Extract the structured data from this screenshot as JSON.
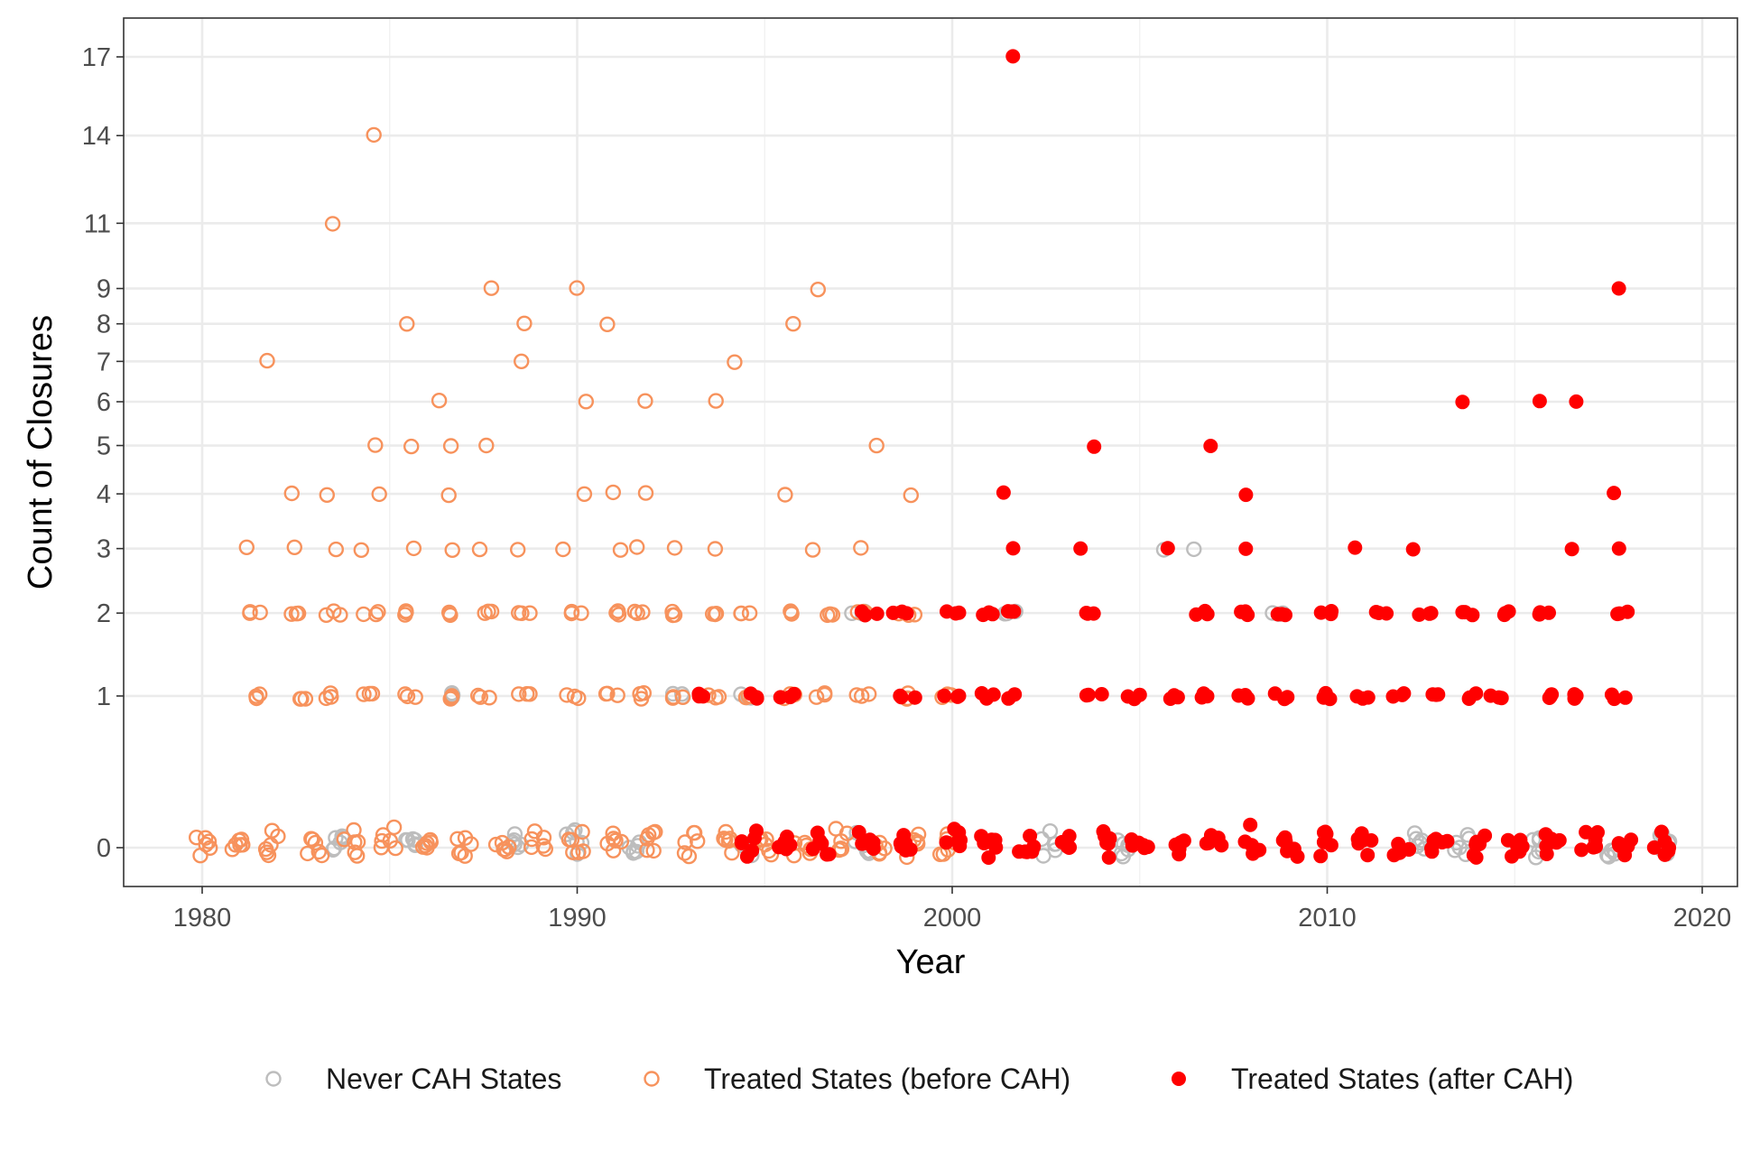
{
  "chart_data": {
    "type": "scatter",
    "title": "",
    "xlabel": "Year",
    "ylabel": "Count of Closures",
    "xlim": [
      1979,
      2020
    ],
    "x_ticks": [
      1980,
      1990,
      2000,
      2010,
      2020
    ],
    "y_ticks": [
      0,
      1,
      2,
      3,
      4,
      5,
      6,
      7,
      8,
      9,
      11,
      14,
      17
    ],
    "y_scale": "square-root",
    "grid": true,
    "legend_position": "bottom",
    "jitter": true,
    "series": [
      {
        "name": "Never CAH States",
        "marker": "open-circle",
        "color": "#bdbdbd",
        "points": [
          [
            1986.6,
            1
          ],
          [
            1992.7,
            1
          ],
          [
            1994.5,
            1
          ],
          [
            1997.5,
            2
          ],
          [
            2001.5,
            2
          ],
          [
            2005.5,
            3
          ],
          [
            2006.6,
            3
          ],
          [
            2008.6,
            2
          ],
          [
            2004.6,
            0
          ],
          [
            2012.5,
            0
          ],
          [
            2017.6,
            0
          ],
          [
            2018.9,
            0
          ],
          [
            1983.6,
            0
          ],
          [
            1985.6,
            0
          ],
          [
            1988.5,
            0
          ],
          [
            1989.9,
            0
          ],
          [
            1991.6,
            0
          ],
          [
            1994.6,
            0
          ],
          [
            1997.6,
            0
          ],
          [
            2002.6,
            0
          ],
          [
            2013.6,
            0
          ],
          [
            2015.6,
            0
          ]
        ]
      },
      {
        "name": "Treated States (before CAH)",
        "marker": "open-circle",
        "color": "#f7925c",
        "points": [
          [
            1981.6,
            7
          ],
          [
            1983.6,
            11
          ],
          [
            1984.5,
            14
          ],
          [
            1985.5,
            8
          ],
          [
            1987.5,
            9
          ],
          [
            1988.6,
            8
          ],
          [
            1988.5,
            7
          ],
          [
            1989.9,
            9
          ],
          [
            1990.9,
            8
          ],
          [
            1994.4,
            7
          ],
          [
            1995.6,
            8
          ],
          [
            1996.5,
            9
          ],
          [
            1986.5,
            6
          ],
          [
            1990.1,
            6
          ],
          [
            1991.6,
            6
          ],
          [
            1993.6,
            6
          ],
          [
            1984.4,
            5
          ],
          [
            1985.5,
            5
          ],
          [
            1986.5,
            5
          ],
          [
            1987.5,
            5
          ],
          [
            1997.8,
            5
          ],
          [
            1982.6,
            4
          ],
          [
            1983.5,
            4
          ],
          [
            1984.5,
            4
          ],
          [
            1986.6,
            4
          ],
          [
            1990.0,
            4
          ],
          [
            1990.9,
            4
          ],
          [
            1991.7,
            4
          ],
          [
            1995.6,
            4
          ],
          [
            1998.8,
            4
          ],
          [
            1981.4,
            3
          ],
          [
            1982.5,
            3
          ],
          [
            1983.5,
            3
          ],
          [
            1984.4,
            3
          ],
          [
            1985.6,
            3
          ],
          [
            1986.6,
            3
          ],
          [
            1987.5,
            3
          ],
          [
            1988.6,
            3
          ],
          [
            1989.8,
            3
          ],
          [
            1991.0,
            3
          ],
          [
            1991.6,
            3
          ],
          [
            1992.8,
            3
          ],
          [
            1993.6,
            3
          ],
          [
            1996.5,
            3
          ],
          [
            1997.7,
            3
          ],
          [
            1981.4,
            2
          ],
          [
            1982.6,
            2
          ],
          [
            1983.5,
            2
          ],
          [
            1984.5,
            2
          ],
          [
            1985.5,
            2
          ],
          [
            1986.6,
            2
          ],
          [
            1987.6,
            2
          ],
          [
            1988.6,
            2
          ],
          [
            1989.9,
            2
          ],
          [
            1990.9,
            2
          ],
          [
            1991.7,
            2
          ],
          [
            1992.7,
            2
          ],
          [
            1993.5,
            2
          ],
          [
            1994.5,
            2
          ],
          [
            1995.6,
            2
          ],
          [
            1996.7,
            2
          ],
          [
            1997.5,
            2
          ],
          [
            1998.8,
            2
          ],
          [
            1981.5,
            1
          ],
          [
            1982.6,
            1
          ],
          [
            1983.5,
            1
          ],
          [
            1984.5,
            1
          ],
          [
            1985.5,
            1
          ],
          [
            1986.6,
            1
          ],
          [
            1987.5,
            1
          ],
          [
            1988.6,
            1
          ],
          [
            1989.9,
            1
          ],
          [
            1990.9,
            1
          ],
          [
            1991.6,
            1
          ],
          [
            1992.7,
            1
          ],
          [
            1993.6,
            1
          ],
          [
            1994.6,
            1
          ],
          [
            1995.6,
            1
          ],
          [
            1996.6,
            1
          ],
          [
            1997.6,
            1
          ],
          [
            1998.6,
            1
          ],
          [
            1999.8,
            1
          ],
          [
            1980.0,
            0
          ],
          [
            1981.0,
            0
          ],
          [
            1981.9,
            0
          ],
          [
            1983.0,
            0
          ],
          [
            1984.0,
            0
          ],
          [
            1985.0,
            0
          ],
          [
            1986.0,
            0
          ],
          [
            1987.0,
            0
          ],
          [
            1988.0,
            0
          ],
          [
            1989.0,
            0
          ],
          [
            1990.0,
            0
          ],
          [
            1991.0,
            0
          ],
          [
            1992.0,
            0
          ],
          [
            1993.0,
            0
          ],
          [
            1994.0,
            0
          ],
          [
            1995.0,
            0
          ],
          [
            1996.0,
            0
          ],
          [
            1997.0,
            0
          ],
          [
            1998.0,
            0
          ],
          [
            1999.0,
            0
          ],
          [
            1999.9,
            0
          ]
        ]
      },
      {
        "name": "Treated States (after CAH)",
        "marker": "filled-circle",
        "color": "#ff0000",
        "points": [
          [
            2001.7,
            17
          ],
          [
            2017.7,
            9
          ],
          [
            2013.6,
            6
          ],
          [
            2015.6,
            6
          ],
          [
            2016.6,
            6
          ],
          [
            2003.8,
            5
          ],
          [
            2006.7,
            5
          ],
          [
            2001.5,
            4
          ],
          [
            2007.8,
            4
          ],
          [
            2017.7,
            4
          ],
          [
            2001.6,
            3
          ],
          [
            2003.5,
            3
          ],
          [
            2005.6,
            3
          ],
          [
            2007.7,
            3
          ],
          [
            2010.7,
            3
          ],
          [
            2012.4,
            3
          ],
          [
            2016.7,
            3
          ],
          [
            2017.6,
            3
          ],
          [
            1997.8,
            2
          ],
          [
            1998.6,
            2
          ],
          [
            2000.0,
            2
          ],
          [
            2001.0,
            2
          ],
          [
            2001.7,
            2
          ],
          [
            2003.8,
            2
          ],
          [
            2006.7,
            2
          ],
          [
            2007.8,
            2
          ],
          [
            2008.8,
            2
          ],
          [
            2009.9,
            2
          ],
          [
            2011.4,
            2
          ],
          [
            2012.6,
            2
          ],
          [
            2013.7,
            2
          ],
          [
            2014.7,
            2
          ],
          [
            2015.7,
            2
          ],
          [
            2017.8,
            2
          ],
          [
            1993.4,
            1
          ],
          [
            1994.6,
            1
          ],
          [
            1995.6,
            1
          ],
          [
            1998.8,
            1
          ],
          [
            2000.0,
            1
          ],
          [
            2000.9,
            1
          ],
          [
            2001.7,
            1
          ],
          [
            2003.8,
            1
          ],
          [
            2004.8,
            1
          ],
          [
            2005.9,
            1
          ],
          [
            2006.8,
            1
          ],
          [
            2007.8,
            1
          ],
          [
            2008.8,
            1
          ],
          [
            2009.9,
            1
          ],
          [
            2010.9,
            1
          ],
          [
            2011.9,
            1
          ],
          [
            2012.9,
            1
          ],
          [
            2013.8,
            1
          ],
          [
            2014.5,
            1
          ],
          [
            2015.8,
            1
          ],
          [
            2016.8,
            1
          ],
          [
            2017.8,
            1
          ],
          [
            1994.6,
            0
          ],
          [
            1995.6,
            0
          ],
          [
            1996.5,
            0
          ],
          [
            1997.7,
            0
          ],
          [
            1998.8,
            0
          ],
          [
            2000.0,
            0
          ],
          [
            2001.0,
            0
          ],
          [
            2002.0,
            0
          ],
          [
            2003.0,
            0
          ],
          [
            2004.0,
            0
          ],
          [
            2005.0,
            0
          ],
          [
            2006.0,
            0
          ],
          [
            2007.0,
            0
          ],
          [
            2008.0,
            0
          ],
          [
            2009.0,
            0
          ],
          [
            2010.0,
            0
          ],
          [
            2011.0,
            0
          ],
          [
            2012.0,
            0
          ],
          [
            2013.0,
            0
          ],
          [
            2014.0,
            0
          ],
          [
            2015.0,
            0
          ],
          [
            2016.0,
            0
          ],
          [
            2017.0,
            0
          ],
          [
            2018.0,
            0
          ],
          [
            2018.9,
            0
          ]
        ]
      }
    ]
  }
}
